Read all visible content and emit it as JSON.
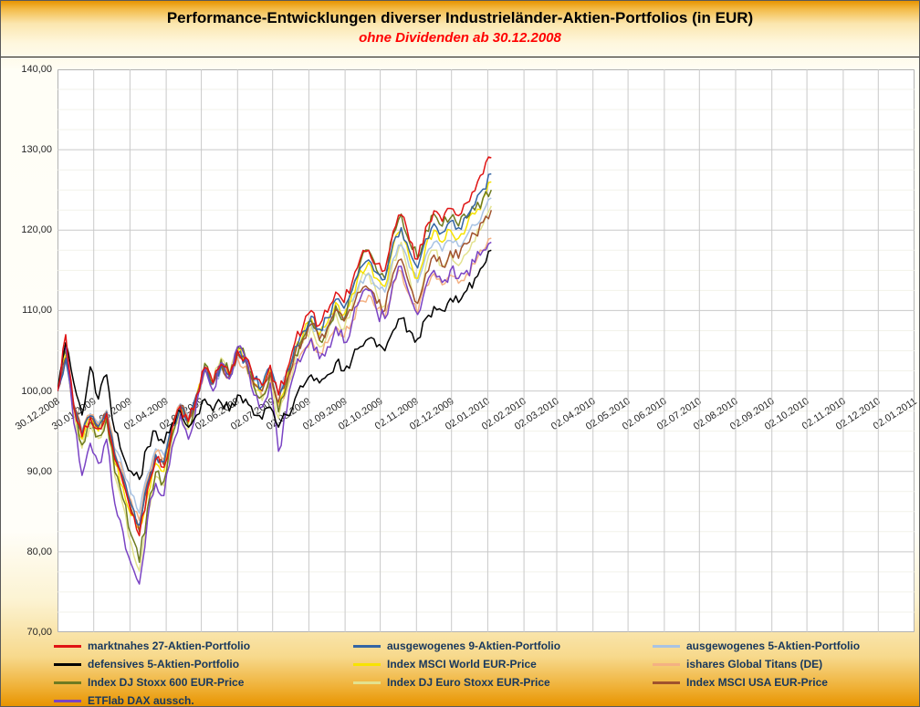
{
  "title": "Performance-Entwicklungen diverser Industrieländer-Aktien-Portfolios (in EUR)",
  "subtitle": "ohne Dividenden ab 30.12.2008",
  "colors": {
    "subtitle_text": "#FF0000",
    "title_text": "#000000",
    "legend_text": "#17375D",
    "frame_gradient_edge": "#E89400",
    "grid_major": "#C9C9C9",
    "grid_minor": "#F2F2EA",
    "plot_background": "#FFFFFF"
  },
  "chart_data": {
    "type": "line",
    "title": "Performance-Entwicklungen diverser Industrieländer-Aktien-Portfolios (in EUR)",
    "subtitle": "ohne Dividenden ab 30.12.2008",
    "grid": true,
    "legend_position": "bottom",
    "ylim": [
      70,
      140
    ],
    "axis_cross_value": 100,
    "y_tick_labels": [
      "140,00",
      "130,00",
      "120,00",
      "110,00",
      "100,00",
      "90,00",
      "80,00",
      "70,00"
    ],
    "x_tick_labels": [
      "30.12.2008",
      "30.01.2009",
      "02.03.2009",
      "02.04.2009",
      "02.05.2009",
      "02.06.2009",
      "02.07.2009",
      "02.08.2009",
      "02.09.2009",
      "02.10.2009",
      "02.11.2009",
      "02.12.2009",
      "02.01.2010",
      "02.02.2010",
      "02.03.2010",
      "02.04.2010",
      "02.05.2010",
      "02.06.2010",
      "02.07.2010",
      "02.08.2010",
      "02.09.2010",
      "02.10.2010",
      "02.11.2010",
      "02.12.2010",
      "02.01.2011"
    ],
    "x_start_date": "30.12.2008",
    "sample_interval_days": 7,
    "series": [
      {
        "id": "marktnahes-27",
        "name": "marktnahes 27-Aktien-Portfolio",
        "color": "#E01414",
        "values": [
          100,
          107,
          98.1,
          94.3,
          96.7,
          95.3,
          97.2,
          91.5,
          88.6,
          84.8,
          82,
          87.7,
          91.5,
          90.5,
          95.3,
          98.1,
          96.2,
          99.5,
          102.9,
          101,
          103.3,
          102,
          105,
          104.2,
          101.5,
          100.7,
          103.2,
          99.5,
          102.5,
          106,
          108,
          110,
          108.2,
          109.8,
          112.3,
          111,
          113.5,
          116.5,
          117.5,
          115.8,
          115,
          119.8,
          121.9,
          118.7,
          116.4,
          120.4,
          122.4,
          121.1,
          122.7,
          121.8,
          123.4,
          124.9,
          127,
          129
        ]
      },
      {
        "id": "ausgewogenes-9",
        "name": "ausgewogenes 9-Aktien-Portfolio",
        "color": "#3465A4",
        "values": [
          100,
          104,
          98.2,
          94.7,
          96.9,
          95.6,
          97.4,
          92.1,
          89.4,
          85.9,
          83.3,
          88.6,
          92.1,
          91.2,
          95.6,
          98.2,
          96.5,
          99.6,
          102.6,
          100.9,
          103.1,
          101.9,
          104.6,
          103.9,
          101.4,
          100.6,
          103,
          99.6,
          102.3,
          105.5,
          107.4,
          109.3,
          107.7,
          109.1,
          111.4,
          110.3,
          112.6,
          115.3,
          116.3,
          114.7,
          113.9,
          118.4,
          120.3,
          117.4,
          115.3,
          118.9,
          120.8,
          119.7,
          121.1,
          120.3,
          121.7,
          123.2,
          125.1,
          127
        ]
      },
      {
        "id": "ausgewogenes-5",
        "name": "ausgewogenes 5-Aktien-Portfolio",
        "color": "#A9C3E3",
        "values": [
          100,
          103.6,
          98.4,
          95.2,
          97.2,
          96,
          97.6,
          92.8,
          90.4,
          87.2,
          84.8,
          89.6,
          92.8,
          92,
          96,
          98.4,
          96.8,
          99.6,
          102.4,
          100.8,
          102.8,
          101.7,
          104.2,
          103.5,
          101.2,
          100.5,
          102.6,
          99.5,
          102,
          104.9,
          106.6,
          108.3,
          106.8,
          108.1,
          110.2,
          109.1,
          111.2,
          113.7,
          114.6,
          113,
          112.3,
          116.4,
          118.1,
          115.4,
          113.5,
          116.8,
          118.5,
          117.4,
          118.7,
          118,
          119.3,
          120.6,
          122.3,
          124
        ]
      },
      {
        "id": "defensives-5",
        "name": "defensives 5-Aktien-Portfolio",
        "color": "#000000",
        "values": [
          100,
          106,
          101,
          97,
          103,
          99,
          102,
          95,
          92,
          90,
          89,
          93,
          95,
          93.5,
          96,
          97.5,
          95.5,
          97,
          99,
          97.5,
          98.5,
          97.5,
          99.5,
          99,
          97,
          96.5,
          98,
          95.5,
          97,
          99,
          100.5,
          102,
          101,
          102,
          103.5,
          102.5,
          104,
          105.5,
          106.5,
          105.5,
          105,
          107.5,
          109,
          107.5,
          106.5,
          109,
          110.5,
          110,
          111.5,
          111,
          112.5,
          114,
          115.5,
          117.5
        ]
      },
      {
        "id": "msci-world",
        "name": "Index MSCI World EUR-Price",
        "color": "#F7E300",
        "values": [
          100,
          104.5,
          98,
          94,
          96.5,
          95,
          97,
          91,
          88,
          84.5,
          83,
          87,
          91,
          90,
          95,
          98,
          96,
          99.5,
          103,
          101,
          103.5,
          102,
          105,
          104,
          101,
          100,
          102.5,
          98.5,
          101.5,
          105,
          107,
          109,
          107,
          108.5,
          111,
          109.5,
          112,
          115,
          116,
          114,
          113,
          118,
          120,
          116.5,
          114,
          118,
          120,
          118.5,
          120,
          119,
          120.5,
          122,
          124,
          126
        ]
      },
      {
        "id": "ishares-global-titans",
        "name": "ishares Global Titans (DE)",
        "color": "#F4B183",
        "values": [
          100,
          103.8,
          98.3,
          94.9,
          97,
          95.8,
          97.5,
          92.4,
          89.8,
          86.4,
          83.9,
          89,
          92.4,
          91.5,
          95.8,
          98.3,
          96.6,
          99.6,
          102.6,
          100.9,
          103,
          101.6,
          104.1,
          103.1,
          100.5,
          99.5,
          101.5,
          98.1,
          100.5,
          103.4,
          105,
          106.6,
          104.8,
          106,
          108,
          106.7,
          108.7,
          111.2,
          111.9,
          110.1,
          109.2,
          113.3,
          114.9,
          111.9,
          109.6,
          113,
          114.6,
          113.2,
          114.4,
          113.4,
          114.6,
          115.8,
          117.4,
          119
        ]
      },
      {
        "id": "dj-stoxx-600",
        "name": "Index DJ Stoxx 600 EUR-Price",
        "color": "#6E7B21",
        "values": [
          100,
          105,
          97.8,
          93.3,
          96.1,
          94.4,
          96.6,
          89.9,
          86.6,
          82.1,
          78.7,
          85.4,
          89.9,
          88.8,
          94.4,
          97.8,
          95.5,
          99.4,
          103.4,
          101.1,
          103.9,
          102.1,
          105.4,
          104.1,
          100.6,
          99.4,
          102.1,
          97.4,
          100.7,
          104.5,
          106.6,
          108.7,
          106.3,
          107.9,
          110.6,
          108.8,
          112.5,
          116,
          117.5,
          115,
          114,
          119.5,
          122,
          118.5,
          116.5,
          120,
          122,
          120.5,
          121.5,
          120.5,
          121.5,
          122.5,
          124,
          125
        ]
      },
      {
        "id": "dj-euro-stoxx",
        "name": "Index DJ Euro Stoxx EUR-Price",
        "color": "#E3E28F",
        "values": [
          100,
          105.3,
          97.6,
          92.9,
          95.9,
          94.1,
          96.5,
          89.4,
          85.8,
          81.1,
          77.6,
          84.7,
          89.4,
          88.2,
          94.1,
          97.6,
          95.3,
          99.4,
          103.5,
          101.2,
          104.1,
          102.2,
          105.4,
          104,
          100.3,
          98.8,
          101.6,
          96.6,
          99.9,
          103.8,
          106,
          108,
          105.5,
          107,
          109.7,
          107.7,
          110.5,
          113.7,
          114.7,
          112.1,
          110.6,
          116.3,
          118.5,
          114.1,
          110.9,
          115.4,
          117.5,
          115.5,
          117.1,
          115.6,
          117.1,
          118.6,
          120.7,
          123
        ]
      },
      {
        "id": "msci-usa",
        "name": "Index MSCI USA EUR-Price",
        "color": "#A0522D",
        "values": [
          100,
          104.1,
          98.2,
          94.5,
          96.8,
          95.4,
          97.2,
          91.7,
          89,
          85.3,
          82.5,
          88,
          91.7,
          90.8,
          95.4,
          98.2,
          96.3,
          99.5,
          102.8,
          100.9,
          103.2,
          101.8,
          104.6,
          103.7,
          100.9,
          100,
          102.3,
          98.6,
          101.4,
          104.6,
          106.4,
          108.3,
          106.4,
          107.8,
          110.1,
          108.7,
          110,
          112.3,
          112.7,
          110.9,
          110,
          114.6,
          116.4,
          113.2,
          110.9,
          114.6,
          116.9,
          115.5,
          117.4,
          116.5,
          118.3,
          119.5,
          121,
          122.5
        ]
      },
      {
        "id": "etflab-dax",
        "name": "ETFlab DAX aussch.",
        "color": "#7A43C4",
        "values": [
          100,
          105.5,
          96,
          89.5,
          93.5,
          91,
          94,
          86,
          82.5,
          78.5,
          76,
          84,
          88.5,
          87,
          93,
          97,
          94,
          98.5,
          103,
          100,
          103.5,
          101.5,
          105.5,
          104,
          99.5,
          98,
          101,
          92.5,
          97.5,
          102.5,
          104.5,
          106.5,
          104,
          105.5,
          108,
          106,
          108.5,
          111.5,
          112.5,
          110,
          109,
          113.5,
          115.5,
          112,
          109.5,
          113,
          115,
          113.5,
          115,
          114,
          115,
          116,
          117.5,
          118.5
        ]
      }
    ]
  }
}
